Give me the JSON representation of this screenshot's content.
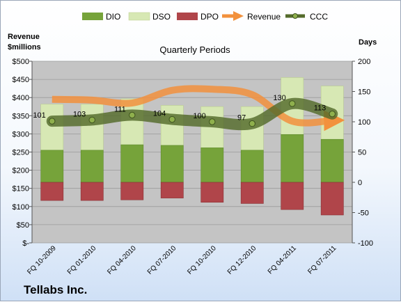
{
  "company": "Tellabs Inc.",
  "colors": {
    "dio": "#76a33a",
    "dso": "#d7e8b4",
    "dpo": "#b0454a",
    "revenue": "#f2913d",
    "ccc": "#546b2b",
    "plot_bg": "#c4c4c4"
  },
  "chart_data": {
    "type": "bar",
    "title": "Quarterly Periods",
    "left_axis_label_line1": "Revenue",
    "left_axis_label_line2": "$millions",
    "right_axis_label": "Days",
    "categories": [
      "FQ 10-2009",
      "FQ 01-2010",
      "FQ 04-2010",
      "FQ 07-2010",
      "FQ 10-2010",
      "FQ 12-2010",
      "FQ 04-2011",
      "FQ 07-2011"
    ],
    "left_ticks": [
      "$500",
      "$450",
      "$400",
      "$350",
      "$300",
      "$250",
      "$200",
      "$150",
      "$100",
      "$50",
      "$-"
    ],
    "right_ticks": [
      "200",
      "150",
      "100",
      "50",
      "0",
      "-50",
      "-100"
    ],
    "left_ylim": [
      0,
      500
    ],
    "right_ylim": [
      -100,
      200
    ],
    "legend_position": "top",
    "series": [
      {
        "name": "DIO",
        "type": "bar",
        "axis": "right",
        "values": [
          53,
          53,
          62,
          61,
          57,
          53,
          79,
          71
        ]
      },
      {
        "name": "DSO",
        "type": "bar",
        "axis": "right",
        "values": [
          76,
          76,
          76,
          66,
          68,
          72,
          94,
          88
        ]
      },
      {
        "name": "DPO",
        "type": "bar",
        "axis": "right",
        "values": [
          -30,
          -30,
          -29,
          -26,
          -33,
          -35,
          -45,
          -54
        ]
      },
      {
        "name": "Revenue",
        "type": "line",
        "axis": "left",
        "values": [
          395,
          393,
          385,
          420,
          423,
          408,
          335,
          337
        ]
      },
      {
        "name": "CCC",
        "type": "line",
        "axis": "right",
        "values": [
          101,
          103,
          111,
          104,
          100,
          97,
          130,
          113
        ],
        "labels": [
          "101",
          "103",
          "111",
          "104",
          "100",
          "97",
          "130",
          "113"
        ]
      }
    ]
  }
}
